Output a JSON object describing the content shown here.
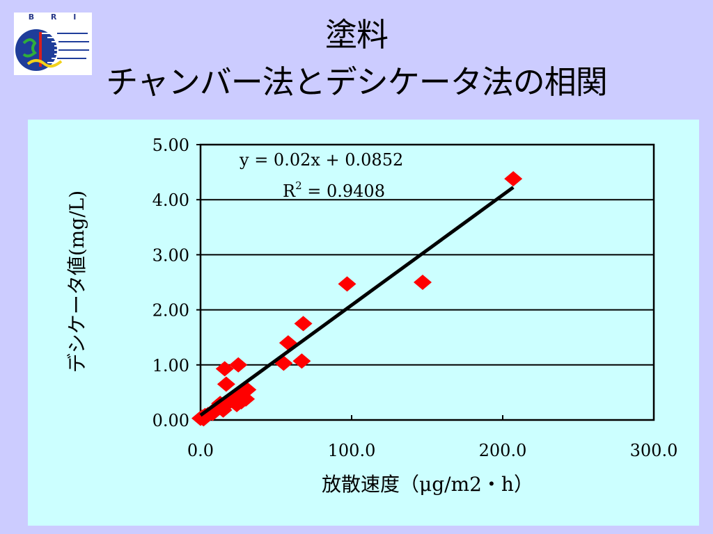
{
  "logo": {
    "letters": "B R I"
  },
  "title": {
    "line1": "塗料",
    "line2": "チャンバー法とデシケータ法の相関"
  },
  "colors": {
    "page_bg": "#ccccff",
    "plot_bg": "#ccffff",
    "marker": "#ff0000",
    "trendline": "#000000"
  },
  "chart_data": {
    "type": "scatter",
    "xlabel": "放散速度（μg/m2・h）",
    "ylabel": "デシケータ値(mg/L)",
    "xlim": [
      0,
      300
    ],
    "ylim": [
      0,
      5
    ],
    "x_ticks": [
      "0.0",
      "100.0",
      "200.0",
      "300.0"
    ],
    "y_ticks": [
      "0.00",
      "1.00",
      "2.00",
      "3.00",
      "4.00",
      "5.00"
    ],
    "grid": "horizontal",
    "legend": "none",
    "trendline": {
      "equation": "y = 0.02x + 0.0852",
      "r2_label": "R",
      "r2_sup": "2",
      "r2_value": " = 0.9408",
      "slope": 0.02,
      "intercept": 0.0852
    },
    "series": [
      {
        "marker": "diamond",
        "points": [
          [
            0,
            0.03
          ],
          [
            1,
            0.05
          ],
          [
            2,
            0.02
          ],
          [
            3,
            0.08
          ],
          [
            5,
            0.1
          ],
          [
            8,
            0.12
          ],
          [
            10,
            0.2
          ],
          [
            12,
            0.25
          ],
          [
            13,
            0.3
          ],
          [
            15,
            0.18
          ],
          [
            16,
            0.93
          ],
          [
            17,
            0.65
          ],
          [
            18,
            0.3
          ],
          [
            20,
            0.35
          ],
          [
            22,
            0.4
          ],
          [
            24,
            0.28
          ],
          [
            25,
            1.0
          ],
          [
            26,
            0.45
          ],
          [
            27,
            0.33
          ],
          [
            28,
            0.5
          ],
          [
            30,
            0.38
          ],
          [
            31,
            0.55
          ],
          [
            55,
            1.03
          ],
          [
            58,
            1.4
          ],
          [
            67,
            1.07
          ],
          [
            68,
            1.75
          ],
          [
            97,
            2.47
          ],
          [
            147,
            2.5
          ],
          [
            207,
            4.38
          ]
        ]
      }
    ]
  }
}
